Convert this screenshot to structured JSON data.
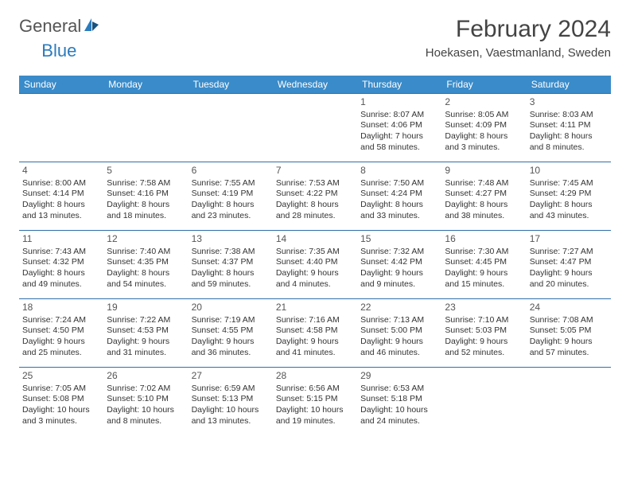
{
  "logo": {
    "text1": "General",
    "text2": "Blue"
  },
  "title": "February 2024",
  "location": "Hoekasen, Vaestmanland, Sweden",
  "colors": {
    "header_bg": "#3a8bc9",
    "header_text": "#ffffff",
    "row_border": "#2f6fa8",
    "body_text": "#333333",
    "title_text": "#444444",
    "logo_gray": "#555555",
    "logo_blue": "#2b7bbd",
    "page_bg": "#ffffff"
  },
  "typography": {
    "title_fontsize": 30,
    "location_fontsize": 15,
    "header_fontsize": 12,
    "cell_fontsize": 10.5,
    "daynum_fontsize": 12
  },
  "calendar": {
    "type": "table",
    "columns": [
      "Sunday",
      "Monday",
      "Tuesday",
      "Wednesday",
      "Thursday",
      "Friday",
      "Saturday"
    ],
    "weeks": [
      [
        null,
        null,
        null,
        null,
        {
          "n": "1",
          "sr": "8:07 AM",
          "ss": "4:06 PM",
          "dl": "7 hours and 58 minutes."
        },
        {
          "n": "2",
          "sr": "8:05 AM",
          "ss": "4:09 PM",
          "dl": "8 hours and 3 minutes."
        },
        {
          "n": "3",
          "sr": "8:03 AM",
          "ss": "4:11 PM",
          "dl": "8 hours and 8 minutes."
        }
      ],
      [
        {
          "n": "4",
          "sr": "8:00 AM",
          "ss": "4:14 PM",
          "dl": "8 hours and 13 minutes."
        },
        {
          "n": "5",
          "sr": "7:58 AM",
          "ss": "4:16 PM",
          "dl": "8 hours and 18 minutes."
        },
        {
          "n": "6",
          "sr": "7:55 AM",
          "ss": "4:19 PM",
          "dl": "8 hours and 23 minutes."
        },
        {
          "n": "7",
          "sr": "7:53 AM",
          "ss": "4:22 PM",
          "dl": "8 hours and 28 minutes."
        },
        {
          "n": "8",
          "sr": "7:50 AM",
          "ss": "4:24 PM",
          "dl": "8 hours and 33 minutes."
        },
        {
          "n": "9",
          "sr": "7:48 AM",
          "ss": "4:27 PM",
          "dl": "8 hours and 38 minutes."
        },
        {
          "n": "10",
          "sr": "7:45 AM",
          "ss": "4:29 PM",
          "dl": "8 hours and 43 minutes."
        }
      ],
      [
        {
          "n": "11",
          "sr": "7:43 AM",
          "ss": "4:32 PM",
          "dl": "8 hours and 49 minutes."
        },
        {
          "n": "12",
          "sr": "7:40 AM",
          "ss": "4:35 PM",
          "dl": "8 hours and 54 minutes."
        },
        {
          "n": "13",
          "sr": "7:38 AM",
          "ss": "4:37 PM",
          "dl": "8 hours and 59 minutes."
        },
        {
          "n": "14",
          "sr": "7:35 AM",
          "ss": "4:40 PM",
          "dl": "9 hours and 4 minutes."
        },
        {
          "n": "15",
          "sr": "7:32 AM",
          "ss": "4:42 PM",
          "dl": "9 hours and 9 minutes."
        },
        {
          "n": "16",
          "sr": "7:30 AM",
          "ss": "4:45 PM",
          "dl": "9 hours and 15 minutes."
        },
        {
          "n": "17",
          "sr": "7:27 AM",
          "ss": "4:47 PM",
          "dl": "9 hours and 20 minutes."
        }
      ],
      [
        {
          "n": "18",
          "sr": "7:24 AM",
          "ss": "4:50 PM",
          "dl": "9 hours and 25 minutes."
        },
        {
          "n": "19",
          "sr": "7:22 AM",
          "ss": "4:53 PM",
          "dl": "9 hours and 31 minutes."
        },
        {
          "n": "20",
          "sr": "7:19 AM",
          "ss": "4:55 PM",
          "dl": "9 hours and 36 minutes."
        },
        {
          "n": "21",
          "sr": "7:16 AM",
          "ss": "4:58 PM",
          "dl": "9 hours and 41 minutes."
        },
        {
          "n": "22",
          "sr": "7:13 AM",
          "ss": "5:00 PM",
          "dl": "9 hours and 46 minutes."
        },
        {
          "n": "23",
          "sr": "7:10 AM",
          "ss": "5:03 PM",
          "dl": "9 hours and 52 minutes."
        },
        {
          "n": "24",
          "sr": "7:08 AM",
          "ss": "5:05 PM",
          "dl": "9 hours and 57 minutes."
        }
      ],
      [
        {
          "n": "25",
          "sr": "7:05 AM",
          "ss": "5:08 PM",
          "dl": "10 hours and 3 minutes."
        },
        {
          "n": "26",
          "sr": "7:02 AM",
          "ss": "5:10 PM",
          "dl": "10 hours and 8 minutes."
        },
        {
          "n": "27",
          "sr": "6:59 AM",
          "ss": "5:13 PM",
          "dl": "10 hours and 13 minutes."
        },
        {
          "n": "28",
          "sr": "6:56 AM",
          "ss": "5:15 PM",
          "dl": "10 hours and 19 minutes."
        },
        {
          "n": "29",
          "sr": "6:53 AM",
          "ss": "5:18 PM",
          "dl": "10 hours and 24 minutes."
        },
        null,
        null
      ]
    ],
    "labels": {
      "sunrise": "Sunrise:",
      "sunset": "Sunset:",
      "daylight": "Daylight:"
    }
  }
}
